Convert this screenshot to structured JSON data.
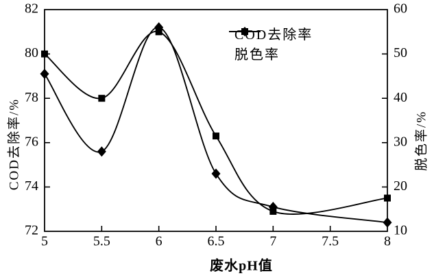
{
  "figure": {
    "background": "#ffffff",
    "line_color": "#000000"
  },
  "chart_data": {
    "type": "line",
    "title": "",
    "xlabel": "废水pH值",
    "x_range": [
      5,
      8
    ],
    "x_ticks": [
      5,
      5.5,
      6,
      6.5,
      7,
      7.5,
      8
    ],
    "x": [
      5,
      5.5,
      6,
      6.5,
      7,
      8
    ],
    "left_axis": {
      "label": "COD去除率/%",
      "range": [
        72,
        82
      ],
      "ticks": [
        72,
        74,
        76,
        78,
        80,
        82
      ]
    },
    "right_axis": {
      "label": "脱色率/%",
      "range": [
        10,
        60
      ],
      "ticks": [
        10,
        20,
        30,
        40,
        50,
        60
      ]
    },
    "grid": false,
    "legend": {
      "position": "upper-right-inside"
    },
    "series": [
      {
        "name": "COD去除率",
        "axis": "left",
        "marker": "square",
        "color": "#000000",
        "values": [
          80.0,
          78.0,
          81.0,
          76.3,
          72.9,
          73.5
        ]
      },
      {
        "name": "脱色率",
        "axis": "right",
        "marker": "diamond",
        "color": "#000000",
        "values": [
          45.5,
          28.0,
          56.0,
          23.0,
          15.5,
          12.0
        ]
      }
    ]
  }
}
